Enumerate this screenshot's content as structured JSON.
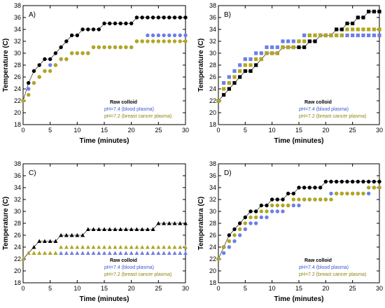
{
  "chart_data": [
    {
      "type": "scatter",
      "panel_label": "A)",
      "xlabel": "Time (minutes)",
      "ylabel": "Temperature (C)",
      "xlim": [
        0,
        30
      ],
      "ylim": [
        18,
        38
      ],
      "xticks": [
        0,
        5,
        10,
        15,
        20,
        25,
        30
      ],
      "yticks": [
        18,
        20,
        22,
        24,
        26,
        28,
        30,
        32,
        34,
        36,
        38
      ],
      "legend_position": "bottom-right",
      "series": [
        {
          "name": "Raw colloid",
          "color": "#000000",
          "marker": "circle",
          "x": [
            0,
            1,
            2,
            3,
            4,
            5,
            6,
            7,
            8,
            9,
            10,
            11,
            12,
            13,
            14,
            15,
            16,
            17,
            18,
            19,
            20,
            21,
            22,
            23,
            24,
            25,
            26,
            27,
            28,
            29,
            30
          ],
          "y": [
            22,
            25,
            27,
            28,
            29,
            29,
            30,
            31,
            32,
            33,
            33,
            34,
            34,
            34,
            34,
            35,
            35,
            35,
            35,
            35,
            35,
            36,
            36,
            36,
            36,
            36,
            36,
            36,
            36,
            36,
            36
          ]
        },
        {
          "name": "pH=7.4 (blood plasma)",
          "color": "#6b7fe8",
          "marker": "circle",
          "x": [
            0,
            1,
            2,
            3,
            4,
            5,
            6,
            7,
            8,
            9,
            10,
            11,
            12,
            13,
            14,
            15,
            16,
            17,
            18,
            19,
            20,
            21,
            22,
            23,
            24,
            25,
            26,
            27,
            28,
            29,
            30
          ],
          "y": [
            22,
            24,
            25,
            26,
            27,
            28,
            28,
            29,
            29,
            30,
            30,
            30,
            30,
            31,
            31,
            31,
            31,
            31,
            31,
            31,
            31,
            32,
            32,
            33,
            33,
            33,
            33,
            33,
            33,
            33,
            33
          ]
        },
        {
          "name": "pH=7.2 (breast cancer plasma)",
          "color": "#b2a71c",
          "marker": "circle",
          "x": [
            0,
            1,
            2,
            3,
            4,
            5,
            6,
            7,
            8,
            9,
            10,
            11,
            12,
            13,
            14,
            15,
            16,
            17,
            18,
            19,
            20,
            21,
            22,
            23,
            24,
            25,
            26,
            27,
            28,
            29,
            30
          ],
          "y": [
            22,
            23,
            25,
            26,
            27,
            27,
            28,
            29,
            29,
            30,
            30,
            30,
            30,
            31,
            31,
            31,
            31,
            31,
            31,
            31,
            31,
            32,
            32,
            32,
            32,
            32,
            32,
            32,
            32,
            32,
            32
          ]
        }
      ]
    },
    {
      "type": "scatter",
      "panel_label": "B)",
      "xlabel": "Time (minutes)",
      "ylabel": "Temperature (C)",
      "xlim": [
        0,
        30
      ],
      "ylim": [
        18,
        38
      ],
      "xticks": [
        0,
        5,
        10,
        15,
        20,
        25,
        30
      ],
      "yticks": [
        18,
        20,
        22,
        24,
        26,
        28,
        30,
        32,
        34,
        36,
        38
      ],
      "legend_position": "bottom-right",
      "series": [
        {
          "name": "Raw colloid",
          "color": "#000000",
          "marker": "square",
          "x": [
            0,
            1,
            2,
            3,
            4,
            5,
            6,
            7,
            8,
            9,
            10,
            11,
            12,
            13,
            14,
            15,
            16,
            17,
            18,
            19,
            20,
            21,
            22,
            23,
            24,
            25,
            26,
            27,
            28,
            29,
            30
          ],
          "y": [
            22,
            23,
            24,
            25,
            26,
            27,
            27,
            28,
            29,
            30,
            30,
            30,
            31,
            31,
            31,
            31,
            31,
            32,
            32,
            33,
            33,
            33,
            34,
            34,
            35,
            35,
            36,
            36,
            37,
            37,
            37
          ]
        },
        {
          "name": "pH=7.4 (blood plasma)",
          "color": "#6b7fe8",
          "marker": "square",
          "x": [
            0,
            1,
            2,
            3,
            4,
            5,
            6,
            7,
            8,
            9,
            10,
            11,
            12,
            13,
            14,
            15,
            16,
            17,
            18,
            19,
            20,
            21,
            22,
            23,
            24,
            25,
            26,
            27,
            28,
            29,
            30
          ],
          "y": [
            22,
            25,
            26,
            27,
            28,
            29,
            29,
            30,
            30,
            31,
            31,
            31,
            32,
            32,
            32,
            32,
            33,
            33,
            33,
            33,
            33,
            33,
            33,
            33,
            33,
            33,
            33,
            33,
            33,
            33,
            33
          ]
        },
        {
          "name": "pH=7.2 (breast cancer plasma)",
          "color": "#b2a71c",
          "marker": "square",
          "x": [
            0,
            1,
            2,
            3,
            4,
            5,
            6,
            7,
            8,
            9,
            10,
            11,
            12,
            13,
            14,
            15,
            16,
            17,
            18,
            19,
            20,
            21,
            22,
            23,
            24,
            25,
            26,
            27,
            28,
            29,
            30
          ],
          "y": [
            22,
            24,
            25,
            26,
            27,
            28,
            28,
            29,
            29,
            30,
            30,
            30,
            31,
            31,
            31,
            32,
            32,
            33,
            33,
            33,
            33,
            33,
            33,
            33,
            34,
            34,
            34,
            34,
            34,
            34,
            34
          ]
        }
      ]
    },
    {
      "type": "scatter",
      "panel_label": "C)",
      "xlabel": "Time (minutes)",
      "ylabel": "Temperature (C)",
      "xlim": [
        0,
        30
      ],
      "ylim": [
        18,
        38
      ],
      "xticks": [
        0,
        5,
        10,
        15,
        20,
        25,
        30
      ],
      "yticks": [
        18,
        20,
        22,
        24,
        26,
        28,
        30,
        32,
        34,
        36,
        38
      ],
      "legend_position": "bottom-right",
      "series": [
        {
          "name": "Raw colloid",
          "color": "#000000",
          "marker": "triangle",
          "x": [
            0,
            1,
            2,
            3,
            4,
            5,
            6,
            7,
            8,
            9,
            10,
            11,
            12,
            13,
            14,
            15,
            16,
            17,
            18,
            19,
            20,
            21,
            22,
            23,
            24,
            25,
            26,
            27,
            28,
            29,
            30
          ],
          "y": [
            22,
            23,
            24,
            25,
            25,
            25,
            25,
            26,
            26,
            26,
            26,
            26,
            27,
            27,
            27,
            27,
            27,
            27,
            27,
            27,
            27,
            27,
            27,
            27,
            27,
            28,
            28,
            28,
            28,
            28,
            28
          ]
        },
        {
          "name": "pH=7.4 (blood plasma)",
          "color": "#6b7fe8",
          "marker": "triangle",
          "x": [
            0,
            1,
            2,
            3,
            4,
            5,
            6,
            7,
            8,
            9,
            10,
            11,
            12,
            13,
            14,
            15,
            16,
            17,
            18,
            19,
            20,
            21,
            22,
            23,
            24,
            25,
            26,
            27,
            28,
            29,
            30
          ],
          "y": [
            22,
            23,
            23,
            23,
            23,
            23,
            23,
            23,
            23,
            23,
            23,
            23,
            23,
            23,
            23,
            23,
            23,
            23,
            23,
            23,
            23,
            23,
            23,
            23,
            23,
            23,
            23,
            23,
            23,
            23,
            23
          ]
        },
        {
          "name": "pH=7.2 (breast cancer plasma)",
          "color": "#b2a71c",
          "marker": "triangle",
          "x": [
            0,
            1,
            2,
            3,
            4,
            5,
            6,
            7,
            8,
            9,
            10,
            11,
            12,
            13,
            14,
            15,
            16,
            17,
            18,
            19,
            20,
            21,
            22,
            23,
            24,
            25,
            26,
            27,
            28,
            29,
            30
          ],
          "y": [
            22,
            23,
            23,
            23,
            23,
            23,
            23,
            24,
            24,
            24,
            24,
            24,
            24,
            24,
            24,
            24,
            24,
            24,
            24,
            24,
            24,
            24,
            24,
            24,
            24,
            24,
            24,
            24,
            24,
            24,
            24
          ]
        }
      ]
    },
    {
      "type": "scatter",
      "panel_label": "D)",
      "xlabel": "Time (minutes)",
      "ylabel": "Temperatura (C)",
      "xlim": [
        0,
        30
      ],
      "ylim": [
        18,
        38
      ],
      "xticks": [
        0,
        5,
        10,
        15,
        20,
        25,
        30
      ],
      "yticks": [
        18,
        20,
        22,
        24,
        26,
        28,
        30,
        32,
        34,
        36,
        38
      ],
      "legend_position": "bottom-right",
      "series": [
        {
          "name": "Raw colloid",
          "color": "#000000",
          "marker": "circle",
          "x": [
            0,
            1,
            2,
            3,
            4,
            5,
            6,
            7,
            8,
            9,
            10,
            11,
            12,
            13,
            14,
            15,
            16,
            17,
            18,
            19,
            20,
            21,
            22,
            23,
            24,
            25,
            26,
            27,
            28,
            29,
            30
          ],
          "y": [
            22,
            24,
            26,
            27,
            28,
            29,
            30,
            30,
            31,
            31,
            32,
            32,
            32,
            33,
            33,
            34,
            34,
            34,
            34,
            34,
            35,
            35,
            35,
            35,
            35,
            35,
            35,
            35,
            35,
            35,
            35
          ]
        },
        {
          "name": "pH=7.4 (blood plasma)",
          "color": "#6b7fe8",
          "marker": "circle",
          "x": [
            0,
            1,
            2,
            3,
            4,
            5,
            6,
            7,
            8,
            9,
            10,
            11,
            12,
            13,
            14,
            15,
            16,
            17,
            18,
            19,
            20,
            21,
            22,
            23,
            24,
            25,
            26,
            27,
            28,
            29,
            30
          ],
          "y": [
            22,
            23,
            24,
            25,
            26,
            27,
            28,
            28,
            29,
            29,
            30,
            30,
            30,
            31,
            31,
            31,
            32,
            32,
            32,
            32,
            32,
            33,
            33,
            33,
            33,
            33,
            33,
            33,
            33,
            34,
            34
          ]
        },
        {
          "name": "pH=7.2 (breast cancer plasma)",
          "color": "#b2a71c",
          "marker": "circle",
          "x": [
            0,
            1,
            2,
            3,
            4,
            5,
            6,
            7,
            8,
            9,
            10,
            11,
            12,
            13,
            14,
            15,
            16,
            17,
            18,
            19,
            20,
            21,
            22,
            23,
            24,
            25,
            26,
            27,
            28,
            29,
            30
          ],
          "y": [
            22,
            24,
            25,
            26,
            27,
            28,
            29,
            29,
            30,
            30,
            31,
            31,
            31,
            31,
            32,
            32,
            32,
            32,
            32,
            32,
            32,
            32,
            33,
            33,
            33,
            33,
            33,
            33,
            34,
            34,
            34
          ]
        }
      ]
    }
  ]
}
